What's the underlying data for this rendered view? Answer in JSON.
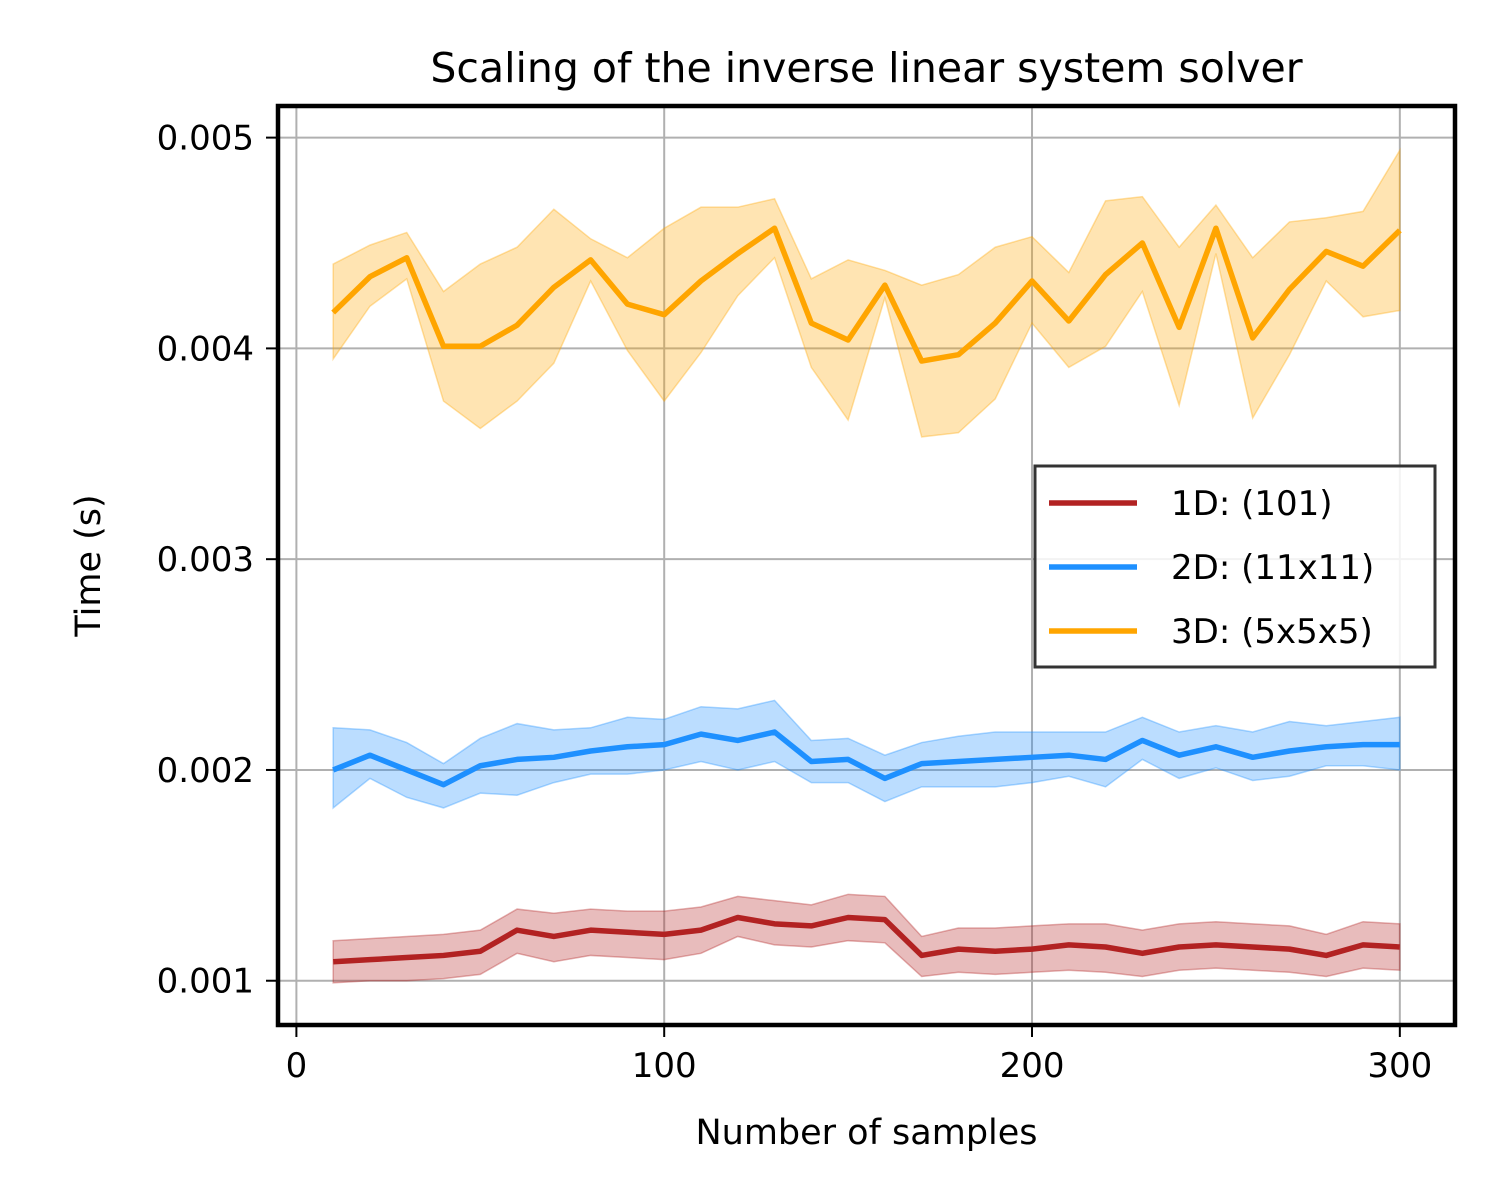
{
  "chart_data": {
    "type": "line",
    "title": "Scaling of the inverse linear system solver",
    "xlabel": "Number of samples",
    "ylabel": "Time (s)",
    "xlim": [
      -5,
      315
    ],
    "ylim": [
      0.00079,
      0.00515
    ],
    "xticks": [
      0,
      100,
      200,
      300
    ],
    "yticks": [
      0.001,
      0.002,
      0.003,
      0.004,
      0.005
    ],
    "xtick_labels": [
      "0",
      "100",
      "200",
      "300"
    ],
    "ytick_labels": [
      "0.001",
      "0.002",
      "0.003",
      "0.004",
      "0.005"
    ],
    "grid": true,
    "legend_position": "center-right",
    "x": [
      10,
      20,
      30,
      40,
      50,
      60,
      70,
      80,
      90,
      100,
      110,
      120,
      130,
      140,
      150,
      160,
      170,
      180,
      190,
      200,
      210,
      220,
      230,
      240,
      250,
      260,
      270,
      280,
      290,
      300
    ],
    "series": [
      {
        "name": "1D: (101)",
        "color": "#b22222",
        "values": [
          0.00109,
          0.0011,
          0.00111,
          0.00112,
          0.00114,
          0.00124,
          0.00121,
          0.00124,
          0.00123,
          0.00122,
          0.00124,
          0.0013,
          0.00127,
          0.00126,
          0.0013,
          0.00129,
          0.00112,
          0.00115,
          0.00114,
          0.00115,
          0.00117,
          0.00116,
          0.00113,
          0.00116,
          0.00117,
          0.00116,
          0.00115,
          0.00112,
          0.00117,
          0.00116
        ],
        "lower": [
          0.00099,
          0.001,
          0.001,
          0.00101,
          0.00103,
          0.00113,
          0.00109,
          0.00112,
          0.00111,
          0.0011,
          0.00113,
          0.00121,
          0.00117,
          0.00116,
          0.00119,
          0.00118,
          0.00102,
          0.00104,
          0.00103,
          0.00104,
          0.00105,
          0.00104,
          0.00102,
          0.00105,
          0.00106,
          0.00105,
          0.00104,
          0.00102,
          0.00106,
          0.00105
        ],
        "upper": [
          0.00119,
          0.0012,
          0.00121,
          0.00122,
          0.00124,
          0.00134,
          0.00132,
          0.00134,
          0.00133,
          0.00133,
          0.00135,
          0.0014,
          0.00138,
          0.00136,
          0.00141,
          0.0014,
          0.00121,
          0.00125,
          0.00125,
          0.00126,
          0.00127,
          0.00127,
          0.00124,
          0.00127,
          0.00128,
          0.00127,
          0.00126,
          0.00122,
          0.00128,
          0.00127
        ]
      },
      {
        "name": "2D: (11x11)",
        "color": "#1e90ff",
        "values": [
          0.002,
          0.00207,
          0.002,
          0.00193,
          0.00202,
          0.00205,
          0.00206,
          0.00209,
          0.00211,
          0.00212,
          0.00217,
          0.00214,
          0.00218,
          0.00204,
          0.00205,
          0.00196,
          0.00203,
          0.00204,
          0.00205,
          0.00206,
          0.00207,
          0.00205,
          0.00214,
          0.00207,
          0.00211,
          0.00206,
          0.00209,
          0.00211,
          0.00212,
          0.00212
        ],
        "lower": [
          0.00182,
          0.00196,
          0.00187,
          0.00182,
          0.00189,
          0.00188,
          0.00194,
          0.00198,
          0.00198,
          0.002,
          0.00204,
          0.002,
          0.00204,
          0.00194,
          0.00194,
          0.00185,
          0.00192,
          0.00192,
          0.00192,
          0.00194,
          0.00197,
          0.00192,
          0.00205,
          0.00196,
          0.00201,
          0.00195,
          0.00197,
          0.00202,
          0.00202,
          0.002
        ],
        "upper": [
          0.0022,
          0.00219,
          0.00213,
          0.00203,
          0.00215,
          0.00222,
          0.00219,
          0.0022,
          0.00225,
          0.00224,
          0.0023,
          0.00229,
          0.00233,
          0.00214,
          0.00215,
          0.00207,
          0.00213,
          0.00216,
          0.00218,
          0.00218,
          0.00218,
          0.00218,
          0.00225,
          0.00218,
          0.00221,
          0.00218,
          0.00223,
          0.00221,
          0.00223,
          0.00225
        ]
      },
      {
        "name": "3D: (5x5x5)",
        "color": "#ffa500",
        "values": [
          0.00417,
          0.00434,
          0.00443,
          0.00401,
          0.00401,
          0.00411,
          0.00429,
          0.00442,
          0.00421,
          0.00416,
          0.00432,
          0.00445,
          0.00457,
          0.00412,
          0.00404,
          0.0043,
          0.00394,
          0.00397,
          0.00412,
          0.00432,
          0.00413,
          0.00435,
          0.0045,
          0.0041,
          0.00457,
          0.00405,
          0.00428,
          0.00446,
          0.00439,
          0.00456
        ],
        "lower": [
          0.00395,
          0.0042,
          0.00433,
          0.00375,
          0.00362,
          0.00375,
          0.00393,
          0.00432,
          0.00399,
          0.00375,
          0.00398,
          0.00425,
          0.00443,
          0.00391,
          0.00366,
          0.00424,
          0.00358,
          0.0036,
          0.00376,
          0.00412,
          0.00391,
          0.00401,
          0.00427,
          0.00373,
          0.00445,
          0.00367,
          0.00397,
          0.00432,
          0.00415,
          0.00418
        ],
        "upper": [
          0.0044,
          0.00449,
          0.00455,
          0.00427,
          0.0044,
          0.00448,
          0.00466,
          0.00452,
          0.00443,
          0.00457,
          0.00467,
          0.00467,
          0.00471,
          0.00433,
          0.00442,
          0.00437,
          0.0043,
          0.00435,
          0.00448,
          0.00453,
          0.00436,
          0.0047,
          0.00472,
          0.00448,
          0.00468,
          0.00443,
          0.0046,
          0.00462,
          0.00465,
          0.00494
        ]
      }
    ]
  }
}
